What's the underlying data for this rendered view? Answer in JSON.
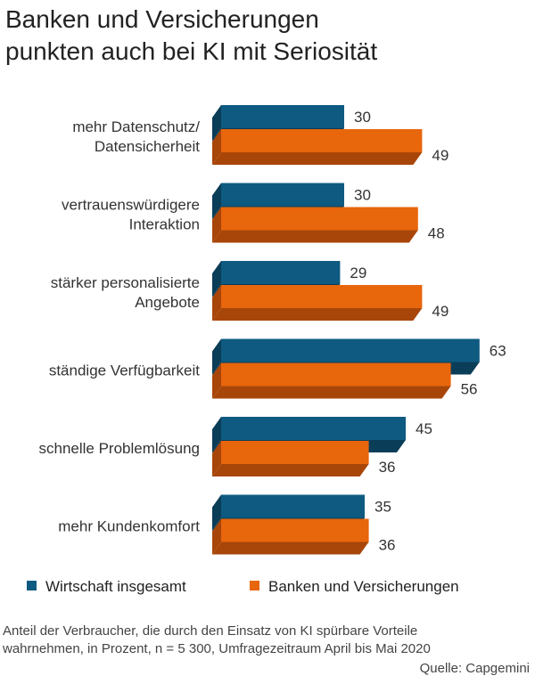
{
  "title": {
    "line1": "Banken und Versicherungen",
    "line2": "punkten auch bei KI mit Seriosität"
  },
  "chart_data": {
    "type": "bar",
    "orientation": "horizontal",
    "style": "3d",
    "categories": [
      [
        "mehr Datenschutz/",
        "Datensicherheit"
      ],
      [
        "vertrauenswürdigere",
        "Interaktion"
      ],
      [
        "stärker personalisierte",
        "Angebote"
      ],
      [
        "ständige Verfügbarkeit"
      ],
      [
        "schnelle Problemlösung"
      ],
      [
        "mehr Kundenkomfort"
      ]
    ],
    "series": [
      {
        "name": "Wirtschaft insgesamt",
        "color": "#0e5a80",
        "values": [
          30,
          30,
          29,
          63,
          45,
          35
        ]
      },
      {
        "name": "Banken und Versicherungen",
        "color": "#e8660c",
        "values": [
          49,
          48,
          49,
          56,
          36,
          36
        ]
      }
    ],
    "xlim": [
      0,
      63
    ],
    "grid": false,
    "legend_position": "bottom"
  },
  "colors": {
    "blue": "#0e5a80",
    "blue_dark": "#0a3d57",
    "orange": "#e8660c",
    "orange_dark": "#a8460a"
  },
  "legend": {
    "item1": "Wirtschaft insgesamt",
    "item2": "Banken und Versicherungen"
  },
  "footnote": {
    "line1": "Anteil der Verbraucher, die durch den Einsatz von KI spürbare Vorteile",
    "line2": "wahrnehmen, in Prozent, n = 5 300, Umfragezeitraum April bis Mai 2020"
  },
  "source": "Quelle: Capgemini"
}
